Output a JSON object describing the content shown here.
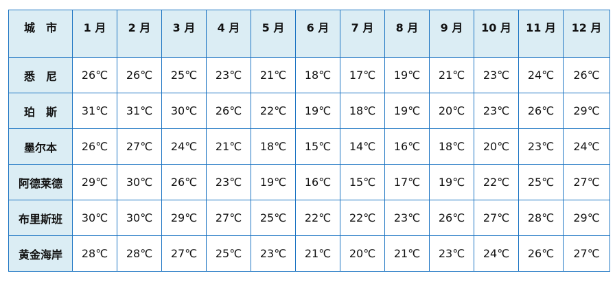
{
  "table": {
    "header": [
      "城　市",
      "1 月",
      "2 月",
      "3 月",
      "4 月",
      "5 月",
      "6 月",
      "7 月",
      "8 月",
      "9 月",
      "10 月",
      "11 月",
      "12 月"
    ],
    "rows": [
      {
        "city": "悉　尼",
        "temps": [
          "26℃",
          "26℃",
          "25℃",
          "23℃",
          "21℃",
          "18℃",
          "17℃",
          "19℃",
          "21℃",
          "23℃",
          "24℃",
          "26℃"
        ]
      },
      {
        "city": "珀　斯",
        "temps": [
          "31℃",
          "31℃",
          "30℃",
          "26℃",
          "22℃",
          "19℃",
          "18℃",
          "19℃",
          "20℃",
          "23℃",
          "26℃",
          "29℃"
        ]
      },
      {
        "city": "墨尔本",
        "temps": [
          "26℃",
          "27℃",
          "24℃",
          "21℃",
          "18℃",
          "15℃",
          "14℃",
          "16℃",
          "18℃",
          "20℃",
          "23℃",
          "24℃"
        ]
      },
      {
        "city": "阿德莱德",
        "temps": [
          "29℃",
          "30℃",
          "26℃",
          "23℃",
          "19℃",
          "16℃",
          "15℃",
          "17℃",
          "19℃",
          "22℃",
          "25℃",
          "27℃"
        ]
      },
      {
        "city": "布里斯班",
        "temps": [
          "30℃",
          "30℃",
          "29℃",
          "27℃",
          "25℃",
          "22℃",
          "22℃",
          "23℃",
          "26℃",
          "27℃",
          "28℃",
          "29℃"
        ]
      },
      {
        "city": "黄金海岸",
        "temps": [
          "28℃",
          "28℃",
          "27℃",
          "25℃",
          "23℃",
          "21℃",
          "20℃",
          "21℃",
          "23℃",
          "24℃",
          "26℃",
          "27℃"
        ]
      }
    ]
  },
  "colors": {
    "header_bg": "#dbedf4",
    "border": "#1a73c2"
  }
}
